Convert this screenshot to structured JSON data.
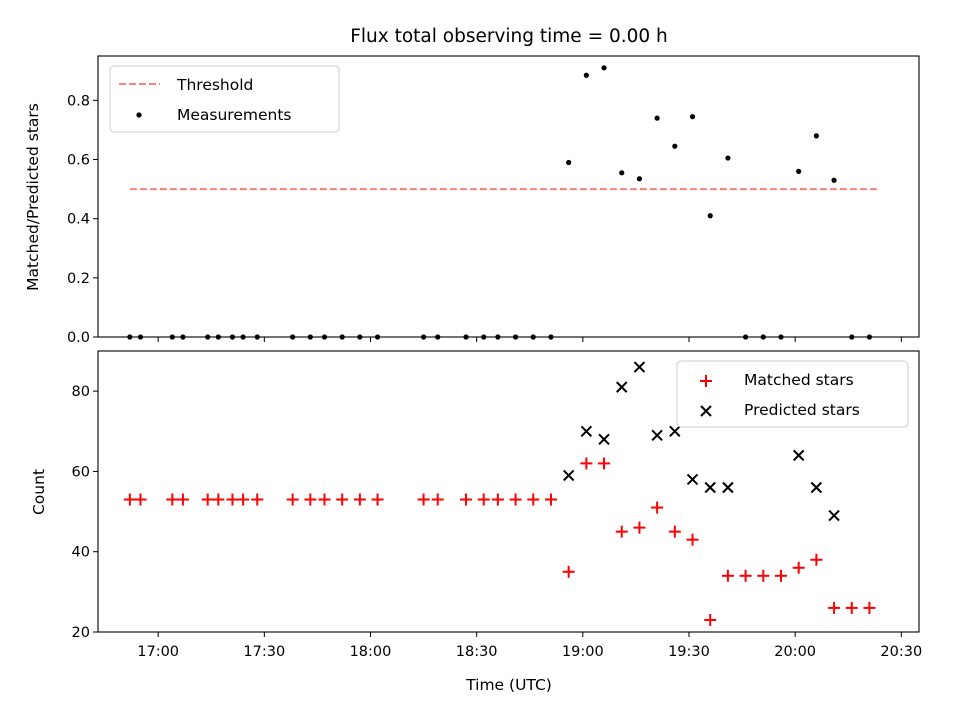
{
  "chart_data": [
    {
      "type": "scatter",
      "title": "Flux total observing time = 0.00 h",
      "xlabel": "",
      "ylabel": "Matched/Predicted stars",
      "ylim": [
        0.0,
        0.95
      ],
      "yticks": [
        "0.0",
        "0.2",
        "0.4",
        "0.6",
        "0.8"
      ],
      "xlim": [
        "16:43",
        "20:35"
      ],
      "legend_position": "top-left",
      "threshold": {
        "name": "Threshold",
        "value": 0.5,
        "x_range": [
          "16:52",
          "20:24"
        ],
        "color": "#ff7f7f",
        "style": "dashed"
      },
      "series": [
        {
          "name": "Measurements",
          "color": "#000000",
          "marker": "dot",
          "x": [
            "16:52",
            "16:55",
            "17:04",
            "17:07",
            "17:14",
            "17:17",
            "17:21",
            "17:24",
            "17:28",
            "17:38",
            "17:43",
            "17:47",
            "17:52",
            "17:57",
            "18:02",
            "18:15",
            "18:19",
            "18:27",
            "18:32",
            "18:36",
            "18:41",
            "18:46",
            "18:51",
            "18:56",
            "19:01",
            "19:06",
            "19:11",
            "19:16",
            "19:21",
            "19:26",
            "19:31",
            "19:36",
            "19:41",
            "19:46",
            "19:51",
            "19:56",
            "20:01",
            "20:06",
            "20:11",
            "20:16",
            "20:21"
          ],
          "y": [
            0,
            0,
            0,
            0,
            0,
            0,
            0,
            0,
            0,
            0,
            0,
            0,
            0,
            0,
            0,
            0,
            0,
            0,
            0,
            0,
            0,
            0,
            0,
            0.59,
            0.885,
            0.91,
            0.555,
            0.535,
            0.74,
            0.645,
            0.745,
            0.41,
            0.605,
            0,
            0,
            0,
            0.56,
            0.68,
            0.53,
            0,
            0
          ]
        }
      ]
    },
    {
      "type": "scatter",
      "xlabel": "Time (UTC)",
      "ylabel": "Count",
      "ylim": [
        20,
        90
      ],
      "yticks": [
        "20",
        "40",
        "60",
        "80"
      ],
      "xlim": [
        "16:43",
        "20:35"
      ],
      "xticks": [
        "17:00",
        "17:30",
        "18:00",
        "18:30",
        "19:00",
        "19:30",
        "20:00",
        "20:30"
      ],
      "legend_position": "top-right",
      "series": [
        {
          "name": "Matched stars",
          "color": "#ff0000",
          "marker": "plus",
          "x": [
            "16:52",
            "16:55",
            "17:04",
            "17:07",
            "17:14",
            "17:17",
            "17:21",
            "17:24",
            "17:28",
            "17:38",
            "17:43",
            "17:47",
            "17:52",
            "17:57",
            "18:02",
            "18:15",
            "18:19",
            "18:27",
            "18:32",
            "18:36",
            "18:41",
            "18:46",
            "18:51",
            "18:56",
            "19:01",
            "19:06",
            "19:11",
            "19:16",
            "19:21",
            "19:26",
            "19:31",
            "19:36",
            "19:41",
            "19:46",
            "19:51",
            "19:56",
            "20:01",
            "20:06",
            "20:11",
            "20:16",
            "20:21"
          ],
          "y": [
            53,
            53,
            53,
            53,
            53,
            53,
            53,
            53,
            53,
            53,
            53,
            53,
            53,
            53,
            53,
            53,
            53,
            53,
            53,
            53,
            53,
            53,
            53,
            35,
            62,
            62,
            45,
            46,
            51,
            45,
            43,
            23,
            34,
            34,
            34,
            34,
            36,
            38,
            26,
            26,
            26
          ]
        },
        {
          "name": "Predicted stars",
          "color": "#000000",
          "marker": "x",
          "x": [
            "18:56",
            "19:01",
            "19:06",
            "19:11",
            "19:16",
            "19:21",
            "19:26",
            "19:31",
            "19:36",
            "19:41",
            "20:01",
            "20:06",
            "20:11"
          ],
          "y": [
            59,
            70,
            68,
            81,
            86,
            69,
            70,
            58,
            56,
            56,
            64,
            56,
            49
          ]
        }
      ]
    }
  ]
}
